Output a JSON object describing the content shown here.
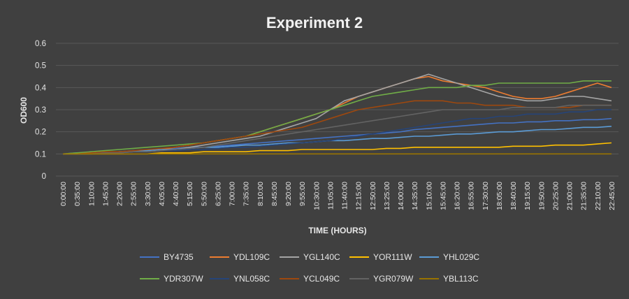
{
  "chart_data": {
    "type": "line",
    "title": "Experiment 2",
    "xlabel": "TIME (HOURS)",
    "ylabel": "OD600",
    "ylim": [
      0,
      0.6
    ],
    "y_ticks": [
      "0",
      "0.1",
      "0.2",
      "0.3",
      "0.4",
      "0.5",
      "0.6"
    ],
    "x_ticks": [
      "0:00:00",
      "0:35:00",
      "1:10:00",
      "1:45:00",
      "2:20:00",
      "2:55:00",
      "3:30:00",
      "4:05:00",
      "4:40:00",
      "5:15:00",
      "5:50:00",
      "6:25:00",
      "7:00:00",
      "7:35:00",
      "8:10:00",
      "8:45:00",
      "9:20:00",
      "9:55:00",
      "10:30:00",
      "11:05:00",
      "11:40:00",
      "12:15:00",
      "12:50:00",
      "13:25:00",
      "14:00:00",
      "14:35:00",
      "15:10:00",
      "15:45:00",
      "16:20:00",
      "16:55:00",
      "17:30:00",
      "18:05:00",
      "18:40:00",
      "19:15:00",
      "19:50:00",
      "20:25:00",
      "21:00:00",
      "21:35:00",
      "22:10:00",
      "22:45:00"
    ],
    "grid": true,
    "legend_position": "bottom",
    "series": [
      {
        "name": "BY4735",
        "color": "#4472c4",
        "values": [
          0.1,
          0.105,
          0.105,
          0.105,
          0.11,
          0.115,
          0.115,
          0.12,
          0.125,
          0.13,
          0.13,
          0.135,
          0.14,
          0.145,
          0.15,
          0.155,
          0.16,
          0.165,
          0.17,
          0.175,
          0.18,
          0.185,
          0.19,
          0.195,
          0.2,
          0.21,
          0.215,
          0.22,
          0.225,
          0.23,
          0.235,
          0.24,
          0.24,
          0.245,
          0.245,
          0.25,
          0.25,
          0.255,
          0.255,
          0.26
        ]
      },
      {
        "name": "YDL109C",
        "color": "#ed7d31",
        "values": [
          0.1,
          0.1,
          0.105,
          0.105,
          0.11,
          0.11,
          0.115,
          0.12,
          0.13,
          0.14,
          0.15,
          0.16,
          0.17,
          0.18,
          0.2,
          0.22,
          0.24,
          0.26,
          0.28,
          0.3,
          0.33,
          0.36,
          0.38,
          0.4,
          0.42,
          0.44,
          0.45,
          0.43,
          0.42,
          0.41,
          0.4,
          0.38,
          0.36,
          0.35,
          0.35,
          0.36,
          0.38,
          0.4,
          0.42,
          0.4
        ]
      },
      {
        "name": "YGL140C",
        "color": "#a5a5a5",
        "values": [
          0.1,
          0.1,
          0.1,
          0.105,
          0.105,
          0.11,
          0.11,
          0.115,
          0.12,
          0.13,
          0.14,
          0.15,
          0.16,
          0.17,
          0.18,
          0.2,
          0.22,
          0.24,
          0.26,
          0.3,
          0.34,
          0.36,
          0.38,
          0.4,
          0.42,
          0.44,
          0.46,
          0.44,
          0.42,
          0.4,
          0.38,
          0.36,
          0.35,
          0.34,
          0.34,
          0.35,
          0.36,
          0.36,
          0.35,
          0.34
        ]
      },
      {
        "name": "YOR111W",
        "color": "#ffc000",
        "values": [
          0.1,
          0.1,
          0.1,
          0.1,
          0.1,
          0.1,
          0.1,
          0.105,
          0.105,
          0.105,
          0.11,
          0.11,
          0.11,
          0.11,
          0.115,
          0.115,
          0.115,
          0.12,
          0.12,
          0.12,
          0.12,
          0.12,
          0.12,
          0.125,
          0.125,
          0.13,
          0.13,
          0.13,
          0.13,
          0.13,
          0.13,
          0.13,
          0.135,
          0.135,
          0.135,
          0.14,
          0.14,
          0.14,
          0.145,
          0.15
        ]
      },
      {
        "name": "YHL029C",
        "color": "#5b9bd5",
        "values": [
          0.1,
          0.1,
          0.105,
          0.105,
          0.11,
          0.11,
          0.115,
          0.12,
          0.12,
          0.125,
          0.13,
          0.13,
          0.135,
          0.14,
          0.14,
          0.145,
          0.15,
          0.15,
          0.155,
          0.16,
          0.16,
          0.165,
          0.17,
          0.17,
          0.175,
          0.18,
          0.18,
          0.185,
          0.19,
          0.19,
          0.195,
          0.2,
          0.2,
          0.205,
          0.21,
          0.21,
          0.215,
          0.22,
          0.22,
          0.225
        ]
      },
      {
        "name": "YDR307W",
        "color": "#70ad47",
        "values": [
          0.1,
          0.105,
          0.11,
          0.115,
          0.12,
          0.125,
          0.13,
          0.135,
          0.14,
          0.145,
          0.15,
          0.16,
          0.17,
          0.18,
          0.2,
          0.22,
          0.24,
          0.26,
          0.28,
          0.3,
          0.32,
          0.34,
          0.36,
          0.37,
          0.38,
          0.39,
          0.4,
          0.4,
          0.4,
          0.41,
          0.41,
          0.42,
          0.42,
          0.42,
          0.42,
          0.42,
          0.42,
          0.43,
          0.43,
          0.43
        ]
      },
      {
        "name": "YNL058C",
        "color": "#264478",
        "values": [
          0.1,
          0.1,
          0.1,
          0.105,
          0.105,
          0.11,
          0.11,
          0.115,
          0.115,
          0.12,
          0.12,
          0.125,
          0.13,
          0.13,
          0.135,
          0.14,
          0.145,
          0.15,
          0.155,
          0.16,
          0.17,
          0.18,
          0.19,
          0.2,
          0.21,
          0.22,
          0.23,
          0.24,
          0.25,
          0.26,
          0.26,
          0.27,
          0.27,
          0.28,
          0.28,
          0.28,
          0.29,
          0.29,
          0.3,
          0.3
        ]
      },
      {
        "name": "YCL049C",
        "color": "#9e480e",
        "values": [
          0.1,
          0.1,
          0.105,
          0.11,
          0.11,
          0.115,
          0.12,
          0.125,
          0.13,
          0.14,
          0.15,
          0.16,
          0.17,
          0.18,
          0.19,
          0.2,
          0.21,
          0.22,
          0.24,
          0.26,
          0.28,
          0.3,
          0.31,
          0.32,
          0.33,
          0.34,
          0.34,
          0.34,
          0.33,
          0.33,
          0.32,
          0.32,
          0.32,
          0.31,
          0.31,
          0.31,
          0.31,
          0.32,
          0.32,
          0.32
        ]
      },
      {
        "name": "YGR079W",
        "color": "#636363",
        "values": [
          0.1,
          0.1,
          0.1,
          0.105,
          0.105,
          0.11,
          0.11,
          0.115,
          0.12,
          0.125,
          0.13,
          0.14,
          0.15,
          0.16,
          0.17,
          0.18,
          0.19,
          0.2,
          0.21,
          0.22,
          0.23,
          0.24,
          0.25,
          0.26,
          0.27,
          0.28,
          0.29,
          0.3,
          0.3,
          0.3,
          0.3,
          0.3,
          0.31,
          0.31,
          0.31,
          0.31,
          0.32,
          0.32,
          0.32,
          0.32
        ]
      },
      {
        "name": "YBL113C",
        "color": "#997300",
        "values": [
          0.1,
          0.1,
          0.1,
          0.1,
          0.1,
          0.1,
          0.1,
          0.1,
          0.1,
          0.1,
          0.1,
          0.1,
          0.1,
          0.1,
          0.1,
          0.1,
          0.1,
          0.1,
          0.1,
          0.1,
          0.1,
          0.1,
          0.1,
          0.1,
          0.1,
          0.1,
          0.1,
          0.1,
          0.1,
          0.1,
          0.1,
          0.1,
          0.1,
          0.1,
          0.1,
          0.1,
          0.1,
          0.1,
          0.1,
          0.1
        ]
      }
    ]
  },
  "colors": {
    "background": "#404040",
    "gridline": "#595959",
    "text": "#e6e6e6"
  }
}
